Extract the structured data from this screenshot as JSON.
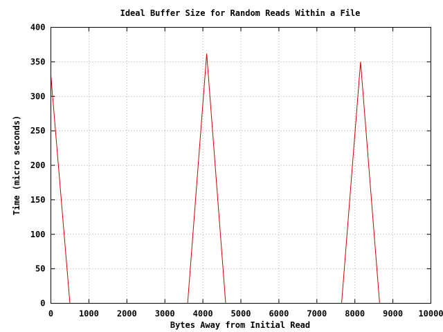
{
  "chart_data": {
    "type": "line",
    "title": "Ideal Buffer Size for Random Reads Within a File",
    "xlabel": "Bytes Away from Initial Read",
    "ylabel": "Time (micro seconds)",
    "xlim": [
      0,
      10000
    ],
    "ylim": [
      0,
      400
    ],
    "x_ticks": [
      0,
      1000,
      2000,
      3000,
      4000,
      5000,
      6000,
      7000,
      8000,
      9000,
      10000
    ],
    "x_tick_labels": [
      "0",
      "1000",
      "2000",
      "3000",
      "4000",
      "5000",
      "6000",
      "7000",
      "8000",
      "9000",
      "10000"
    ],
    "y_ticks": [
      0,
      50,
      100,
      150,
      200,
      250,
      300,
      350,
      400
    ],
    "y_tick_labels": [
      "0",
      "50",
      "100",
      "150",
      "200",
      "250",
      "300",
      "350",
      "400"
    ],
    "grid": true,
    "line_color": "#cc0000",
    "series": [
      {
        "x": [
          0,
          500,
          3600,
          4100,
          4600,
          7650,
          8150,
          8650,
          9650
        ],
        "y": [
          330,
          0,
          0,
          362,
          0,
          0,
          350,
          0,
          0
        ]
      }
    ]
  }
}
